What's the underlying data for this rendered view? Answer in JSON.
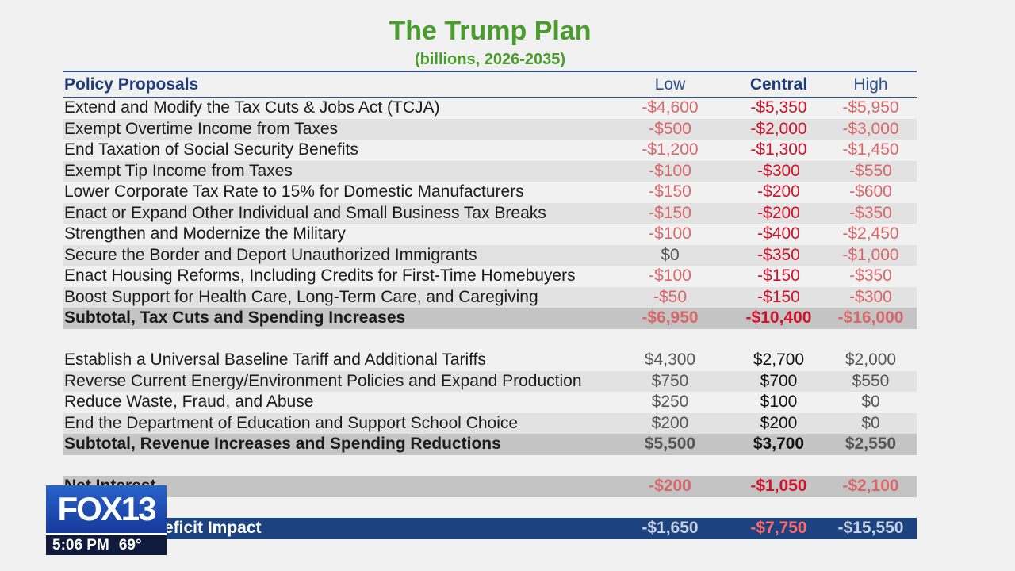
{
  "slide": {
    "title": "The Trump Plan",
    "subtitle": "(billions, 2026-2035)"
  },
  "table": {
    "header": {
      "label": "Policy Proposals",
      "low": "Low",
      "central": "Central",
      "high": "High"
    },
    "section1": [
      {
        "label": "Extend and Modify the Tax Cuts & Jobs Act (TCJA)",
        "low": "-$4,600",
        "central": "-$5,350",
        "high": "-$5,950"
      },
      {
        "label": "Exempt Overtime Income from Taxes",
        "low": "-$500",
        "central": "-$2,000",
        "high": "-$3,000"
      },
      {
        "label": "End Taxation of Social Security Benefits",
        "low": "-$1,200",
        "central": "-$1,300",
        "high": "-$1,450"
      },
      {
        "label": "Exempt Tip Income from Taxes",
        "low": "-$100",
        "central": "-$300",
        "high": "-$550"
      },
      {
        "label": "Lower Corporate Tax Rate to 15% for Domestic Manufacturers",
        "low": "-$150",
        "central": "-$200",
        "high": "-$600"
      },
      {
        "label": "Enact or Expand Other Individual and Small Business Tax Breaks",
        "low": "-$150",
        "central": "-$200",
        "high": "-$350"
      },
      {
        "label": "Strengthen and Modernize the Military",
        "low": "-$100",
        "central": "-$400",
        "high": "-$2,450"
      },
      {
        "label": "Secure the Border and Deport Unauthorized Immigrants",
        "low": "$0",
        "central": "-$350",
        "high": "-$1,000"
      },
      {
        "label": "Enact Housing Reforms, Including Credits for First-Time Homebuyers",
        "low": "-$100",
        "central": "-$150",
        "high": "-$350"
      },
      {
        "label": "Boost Support for Health Care, Long-Term Care, and Caregiving",
        "low": "-$50",
        "central": "-$150",
        "high": "-$300"
      }
    ],
    "subtotal1": {
      "label": "Subtotal, Tax Cuts and Spending Increases",
      "low": "-$6,950",
      "central": "-$10,400",
      "high": "-$16,000"
    },
    "section2": [
      {
        "label": "Establish a Universal Baseline Tariff and Additional Tariffs",
        "low": "$4,300",
        "central": "$2,700",
        "high": "$2,000"
      },
      {
        "label": "Reverse Current Energy/Environment Policies and Expand Production",
        "low": "$750",
        "central": "$700",
        "high": "$550"
      },
      {
        "label": "Reduce Waste, Fraud, and Abuse",
        "low": "$250",
        "central": "$100",
        "high": "$0"
      },
      {
        "label": "End the Department of Education and Support School Choice",
        "low": "$200",
        "central": "$200",
        "high": "$0"
      }
    ],
    "subtotal2": {
      "label": "Subtotal, Revenue Increases and Spending Reductions",
      "low": "$5,500",
      "central": "$3,700",
      "high": "$2,550"
    },
    "net_interest": {
      "label": "Net Interest",
      "low": "-$200",
      "central": "-$1,050",
      "high": "-$2,100"
    },
    "deficit": {
      "label": "eficit Impact",
      "low": "-$1,650",
      "central": "-$7,750",
      "high": "-$15,550"
    }
  },
  "bug": {
    "logo": "FOX13",
    "time": "5:06 PM",
    "temp": "69°"
  }
}
